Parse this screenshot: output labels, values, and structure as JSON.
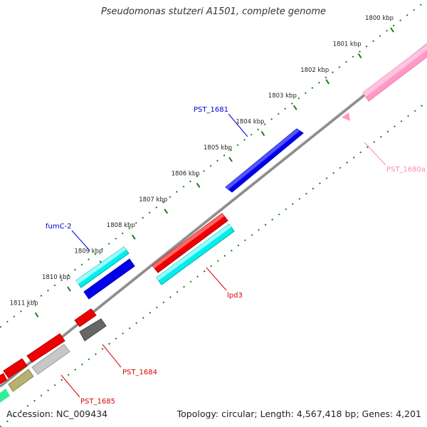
{
  "map": {
    "title": "Pseudomonas stutzeri A1501, complete genome",
    "accession": "Accession: NC_009434",
    "summary": "Topology: circular; Length: 4,567,418 bp; Genes: 4,201"
  },
  "ticks": [
    {
      "label": "1800 kbp",
      "position_kbp": 1800
    },
    {
      "label": "1801 kbp",
      "position_kbp": 1801
    },
    {
      "label": "1802 kbp",
      "position_kbp": 1802
    },
    {
      "label": "1803 kbp",
      "position_kbp": 1803
    },
    {
      "label": "1804 kbp",
      "position_kbp": 1804
    },
    {
      "label": "1805 kbp",
      "position_kbp": 1805
    },
    {
      "label": "1806 kbp",
      "position_kbp": 1806
    },
    {
      "label": "1807 kbp",
      "position_kbp": 1807
    },
    {
      "label": "1808 kbp",
      "position_kbp": 1808
    },
    {
      "label": "1809 kbp",
      "position_kbp": 1809
    },
    {
      "label": "1810 kbp",
      "position_kbp": 1810
    },
    {
      "label": "1811 kbp",
      "position_kbp": 1811
    }
  ],
  "gene_labels": [
    {
      "id": "pst1681",
      "text": "PST_1681",
      "color": "#0000cc"
    },
    {
      "id": "pst1680a",
      "text": "PST_1680a",
      "color": "#ff88bb"
    },
    {
      "id": "fumc2",
      "text": "fumC-2",
      "color": "#0000cc"
    },
    {
      "id": "lpd3",
      "text": "lpd3",
      "color": "#dd0000"
    },
    {
      "id": "pst1684",
      "text": "PST_1684",
      "color": "#dd0000"
    },
    {
      "id": "pst1685",
      "text": "PST_1685",
      "color": "#dd0000"
    }
  ],
  "colors": {
    "backbone": "#888888",
    "tick": "#1a7a1a",
    "blue": "#0000ee",
    "cyan": "#00eeee",
    "red": "#ee0000",
    "pink": "#ff99c8",
    "dark_gray": "#666666",
    "light_gray": "#c8c8c8",
    "olive": "#b8b070",
    "green": "#33ee99"
  }
}
